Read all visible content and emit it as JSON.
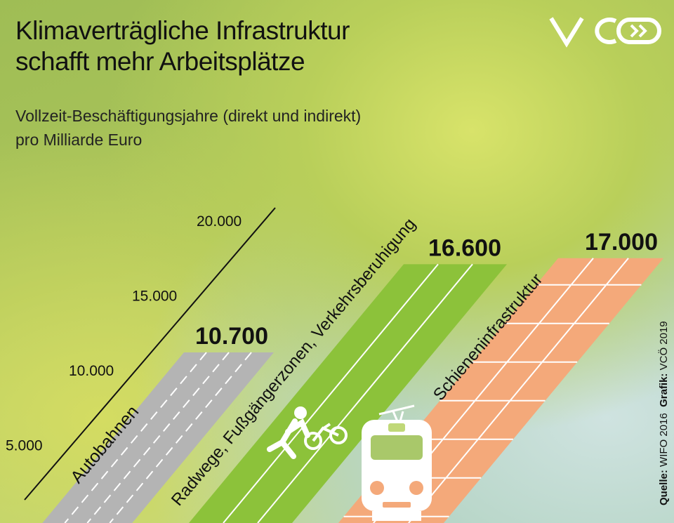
{
  "title_line1": "Klimaverträgliche Infrastruktur",
  "title_line2": "schafft mehr Arbeitsplätze",
  "subtitle_line1": "Vollzeit-Beschäftigungsjahre (direkt und indirekt)",
  "subtitle_line2": "pro Milliarde Euro",
  "logo": "VCÖ",
  "source_label": "Quelle:",
  "source_value": "WIFO 2016",
  "graphic_label": "Grafik:",
  "graphic_value": "VCÖ 2019",
  "chart_data": {
    "type": "bar",
    "title": "Klimaverträgliche Infrastruktur schafft mehr Arbeitsplätze",
    "ylabel": "Vollzeit-Beschäftigungsjahre (direkt und indirekt) pro Milliarde Euro",
    "categories": [
      "Autobahnen",
      "Radwege, Fußgängerzonen, Verkehrsberuhigung",
      "Schieneninfrastruktur"
    ],
    "values": [
      10700,
      16600,
      17000
    ],
    "value_labels": [
      "10.700",
      "16.600",
      "17.000"
    ],
    "colors": [
      "#b4b4b4",
      "#8cc23a",
      "#f4a97a"
    ],
    "y_ticks": [
      5000,
      10000,
      15000,
      20000
    ],
    "y_tick_labels": [
      "5.000",
      "10.000",
      "15.000",
      "20.000"
    ],
    "ylim": [
      5000,
      20000
    ],
    "grid": false,
    "icons": [
      "pedestrian-icon",
      "bicycle-icon",
      "tram-icon"
    ]
  }
}
